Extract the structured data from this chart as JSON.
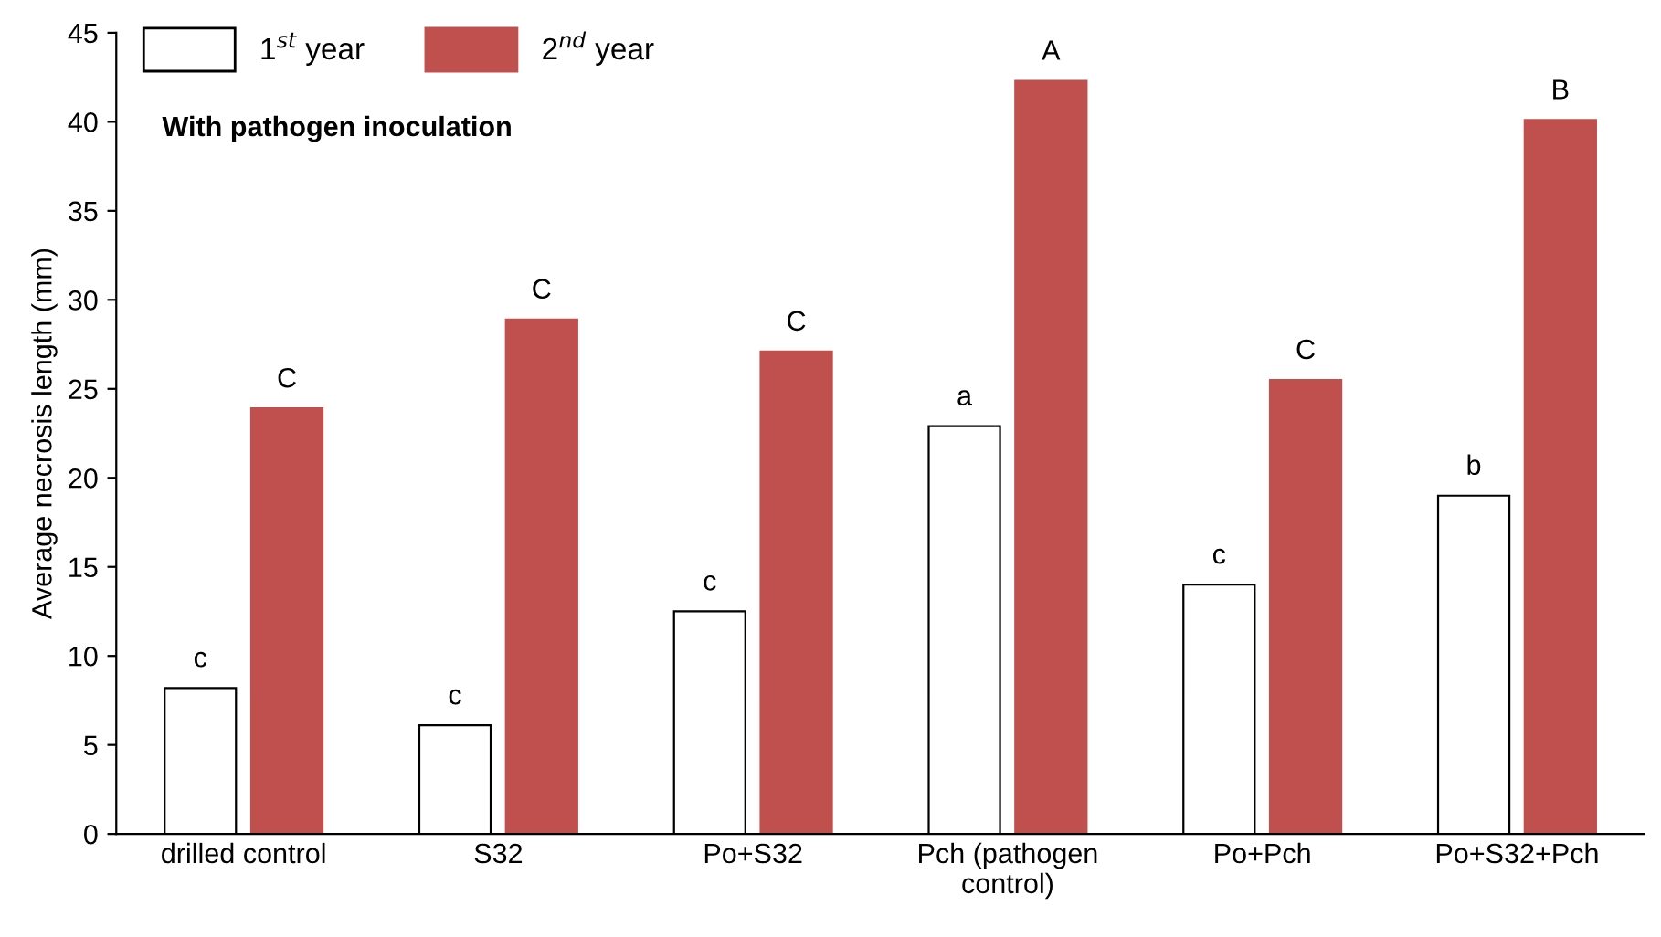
{
  "chart_data": {
    "type": "bar",
    "ylabel": "Average necrosis length (mm)",
    "categories": [
      "drilled control",
      "S32",
      "Po+S32",
      "Pch (pathogen\ncontrol)",
      "Po+Pch",
      "Po+S32+Pch"
    ],
    "series": [
      {
        "name": "1$^{st}$ year",
        "color": "#ffffff",
        "values": [
          8.2,
          6.1,
          12.5,
          22.9,
          14,
          19
        ],
        "value_labels": [
          "c",
          "c",
          "c",
          "a",
          "c",
          "b"
        ]
      },
      {
        "name": "2$^{nd}$ year",
        "color": "#c0504d",
        "values": [
          23.9,
          28.9,
          27.1,
          42.3,
          25.5,
          40.1
        ],
        "value_labels": [
          "C",
          "C",
          "C",
          "A",
          "C",
          "B"
        ]
      }
    ],
    "annotations": [
      "With pathogen inoculation"
    ],
    "ylim": [
      0,
      45
    ],
    "yticks": [
      0,
      5,
      10,
      15,
      20,
      25,
      30,
      35,
      40,
      45
    ],
    "grid": false,
    "legend": "top left"
  }
}
